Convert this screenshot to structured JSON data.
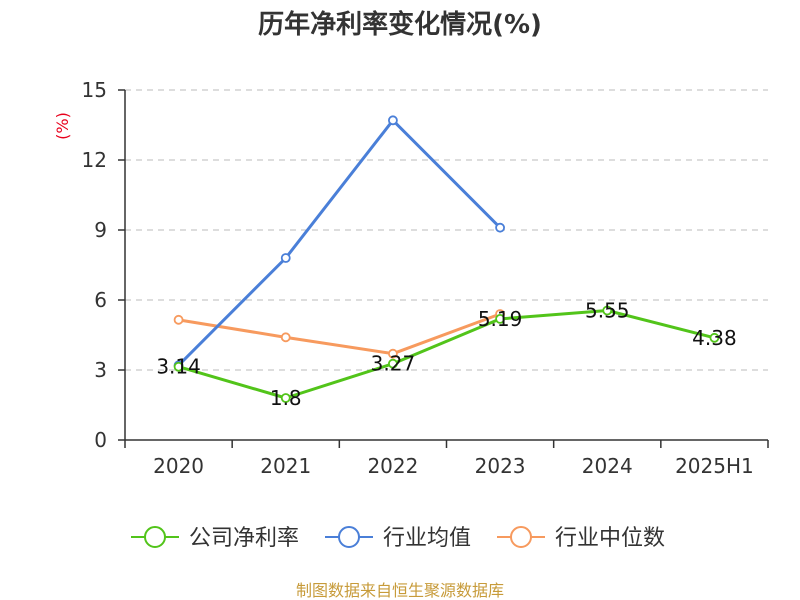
{
  "chart_data": {
    "type": "line",
    "title": "历年净利率变化情况(%)",
    "ylabel": "(%)",
    "xlabel": "",
    "categories": [
      "2020",
      "2021",
      "2022",
      "2023",
      "2024",
      "2025H1"
    ],
    "ylim": [
      0,
      15
    ],
    "yticks": [
      0,
      3,
      6,
      9,
      12,
      15
    ],
    "grid": true,
    "legend_position": "bottom",
    "series": [
      {
        "name": "公司净利率",
        "color": "#52c41a",
        "values": [
          3.14,
          1.8,
          3.27,
          5.19,
          5.55,
          4.38
        ],
        "labels": [
          "3.14",
          "1.8",
          "3.27",
          "5.19",
          "5.55",
          "4.38"
        ]
      },
      {
        "name": "行业均值",
        "color": "#4a7fd8",
        "values": [
          3.2,
          7.8,
          13.7,
          9.1,
          null,
          null
        ]
      },
      {
        "name": "行业中位数",
        "color": "#f79a5e",
        "values": [
          5.15,
          4.4,
          3.7,
          5.4,
          null,
          null
        ]
      }
    ]
  },
  "footer": {
    "source": "制图数据来自恒生聚源数据库"
  }
}
